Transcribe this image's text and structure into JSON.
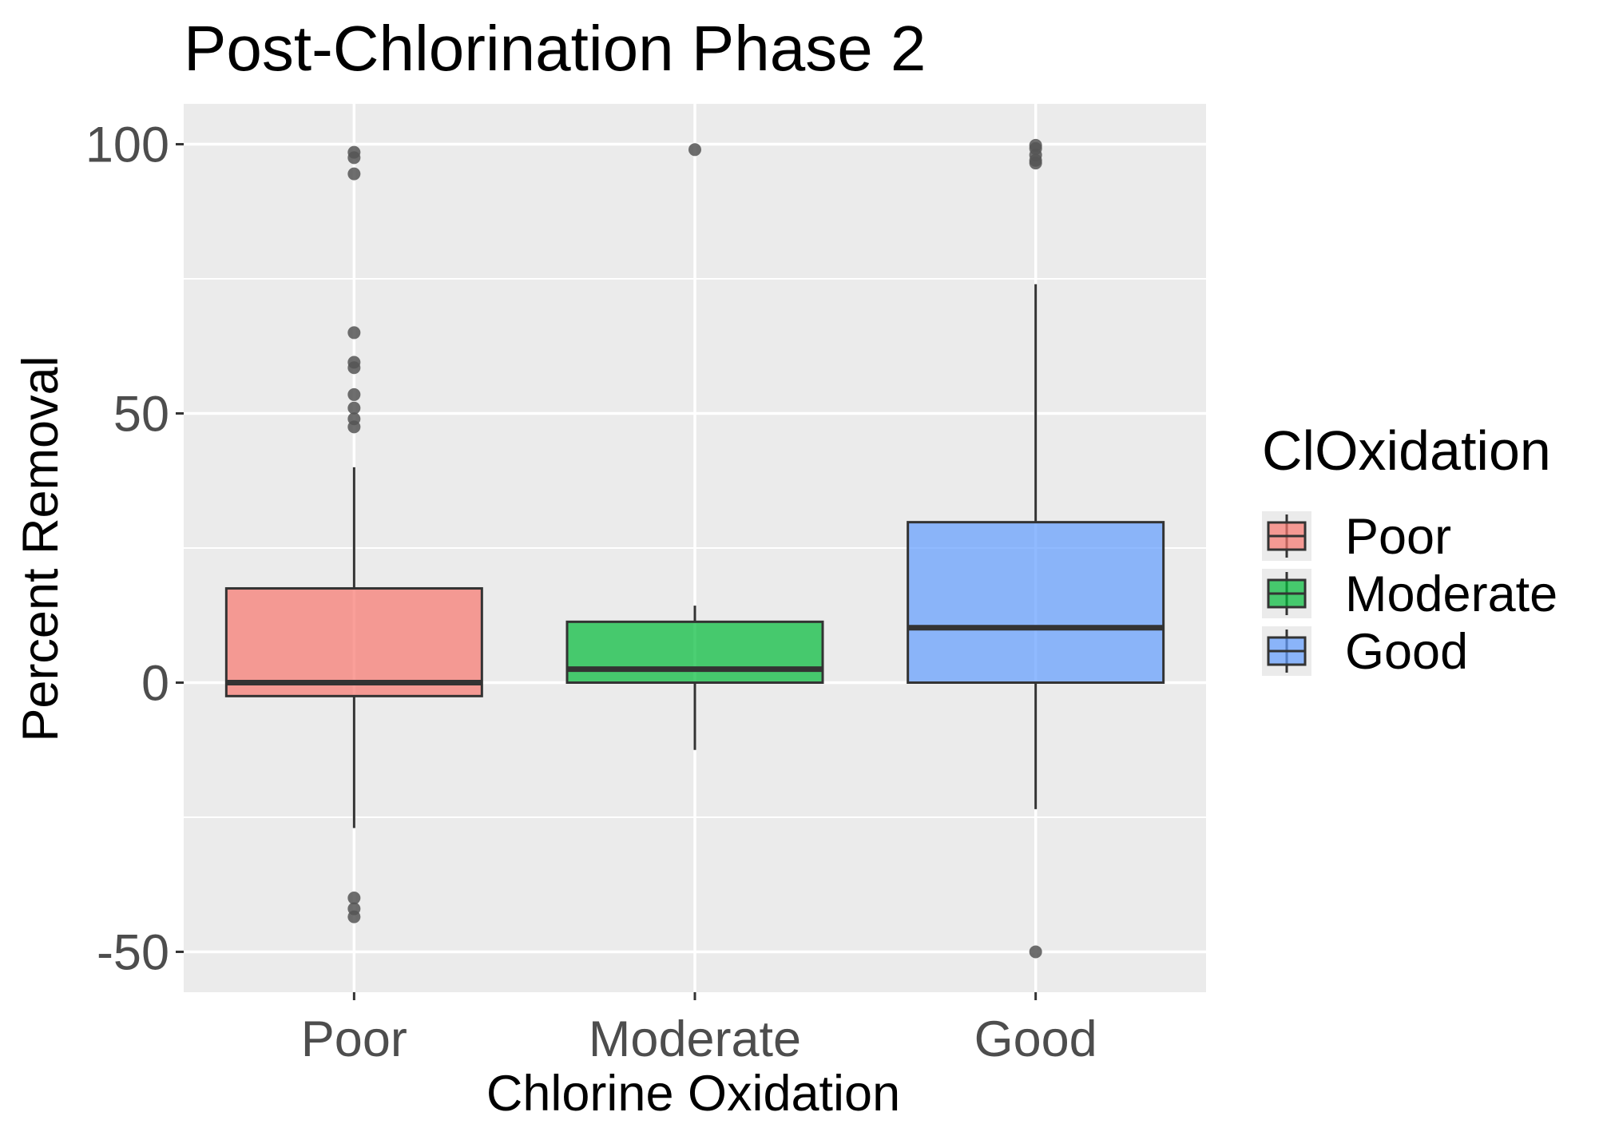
{
  "chart_data": {
    "type": "boxplot",
    "title": "Post-Chlorination Phase 2",
    "xlabel": "Chlorine Oxidation",
    "ylabel": "Percent Removal",
    "ylim": [
      -57.5,
      107.5
    ],
    "y_ticks": [
      -50,
      0,
      50,
      100
    ],
    "y_tick_labels": [
      "-50",
      "0",
      "50",
      "100"
    ],
    "grid": true,
    "legend": {
      "title": "ClOxidation",
      "position": "right",
      "entries": [
        "Poor",
        "Moderate",
        "Good"
      ]
    },
    "categories": [
      "Poor",
      "Moderate",
      "Good"
    ],
    "colors": {
      "Poor": "#F8766D",
      "Moderate": "#00BA38",
      "Good": "#619CFF",
      "panel": "#EBEBEB",
      "outline": "#333333",
      "outlier": "#555555"
    },
    "series": [
      {
        "name": "Poor",
        "whisker_low": -27,
        "q1": -2.5,
        "median": 0,
        "q3": 17.5,
        "whisker_high": 40,
        "outliers": [
          98.5,
          97.5,
          94.5,
          65,
          59.5,
          58.5,
          53.5,
          51,
          49,
          47.5,
          -40,
          -42,
          -43.5
        ]
      },
      {
        "name": "Moderate",
        "whisker_low": -12.5,
        "q1": 0,
        "median": 2.5,
        "q3": 11.3,
        "whisker_high": 14.3,
        "outliers": [
          99
        ]
      },
      {
        "name": "Good",
        "whisker_low": -23.5,
        "q1": 0,
        "median": 10.2,
        "q3": 29.8,
        "whisker_high": 74,
        "outliers": [
          99.8,
          99.2,
          98,
          97,
          96.5,
          -50
        ]
      }
    ]
  }
}
